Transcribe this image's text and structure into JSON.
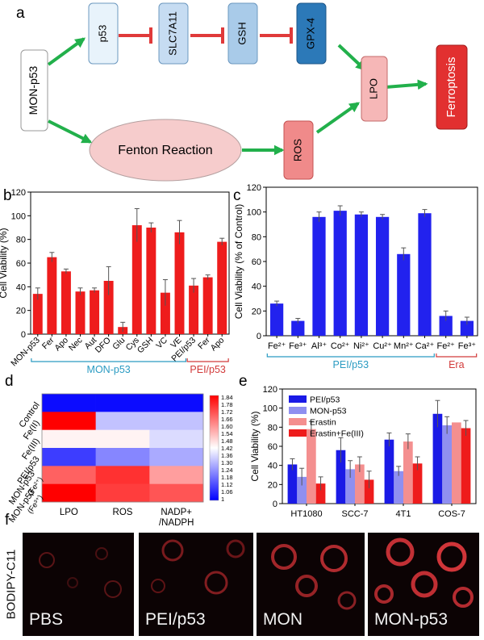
{
  "panel_letters": {
    "a": "a",
    "b": "b",
    "c": "c",
    "d": "d",
    "e": "e",
    "f": "f"
  },
  "panel_a": {
    "nodes": {
      "mon": "MON-p53",
      "p53": "p53",
      "slc": "SLC7A11",
      "gsh": "GSH",
      "gpx": "GPX-4",
      "lpo": "LPO",
      "ferro": "Ferroptosis",
      "fenton": "Fenton Reaction",
      "ros": "ROS"
    },
    "colors": {
      "activate": "#22b04b",
      "inhibit": "#e03a3a",
      "p53": "#e8f3fb",
      "slc": "#c6dcf2",
      "gsh": "#a9cbe9",
      "gpx": "#2c79b8",
      "lpo": "#f6b7b7",
      "ferro": "#e23030",
      "fenton": "#f6cccc",
      "ros": "#f08a8a"
    }
  },
  "chart_data": [
    {
      "id": "b",
      "type": "bar",
      "ylabel": "Cell Viability (%)",
      "ylim": [
        0,
        120
      ],
      "yticks": [
        0,
        20,
        40,
        60,
        80,
        100,
        120
      ],
      "color": "#ee1c1c",
      "categories": [
        "MON-p53",
        "Fer",
        "Apo",
        "Nec",
        "Aut",
        "DFO",
        "Glu",
        "Cys",
        "GSH",
        "VC",
        "VE",
        "PEI/p53",
        "Fer",
        "Apo"
      ],
      "values": [
        34,
        65,
        53,
        36,
        37,
        45,
        6,
        92,
        90,
        35,
        86,
        41,
        48,
        78
      ],
      "errors": [
        5,
        4,
        2,
        3,
        2,
        12,
        4,
        14,
        4,
        11,
        10,
        6,
        2,
        3
      ],
      "groups": [
        {
          "label": "MON-p53",
          "from": 0,
          "to": 10,
          "color": "#2a9bc2"
        },
        {
          "label": "PEI/p53",
          "from": 11,
          "to": 13,
          "color": "#d23a3a"
        }
      ]
    },
    {
      "id": "c",
      "type": "bar",
      "ylabel": "Cell Viability (% of Control)",
      "ylim": [
        0,
        120
      ],
      "yticks": [
        0,
        20,
        40,
        60,
        80,
        100,
        120
      ],
      "color": "#2222ee",
      "categories": [
        "Fe²⁺",
        "Fe³⁺",
        "Al³⁺",
        "Co²⁺",
        "Ni²⁺",
        "Cu²⁺",
        "Mn²⁺",
        "Ca²⁺",
        "Fe²⁺",
        "Fe³⁺"
      ],
      "values": [
        26,
        12,
        96,
        101,
        98,
        96,
        66,
        99,
        16,
        12
      ],
      "errors": [
        2,
        2,
        4,
        4,
        2,
        2,
        5,
        3,
        4,
        3
      ],
      "groups": [
        {
          "label": "PEI/p53",
          "from": 0,
          "to": 7,
          "color": "#2a9bc2"
        },
        {
          "label": "Era",
          "from": 8,
          "to": 9,
          "color": "#d23a3a"
        }
      ]
    },
    {
      "id": "d",
      "type": "heatmap",
      "rows": [
        "Control",
        "Fe(II)",
        "Fe(III)",
        "PEI/p53",
        "MON-p53 (Fe²⁺)",
        "MON-p53 (Fe³⁺)"
      ],
      "columns": [
        "LPO",
        "ROS",
        "NADP+ /NADPH"
      ],
      "values": [
        [
          1.02,
          1.02,
          1.02
        ],
        [
          1.84,
          1.32,
          1.32
        ],
        [
          1.44,
          1.44,
          1.36
        ],
        [
          1.1,
          1.22,
          1.28
        ],
        [
          1.68,
          1.76,
          1.58
        ],
        [
          1.84,
          1.74,
          1.7
        ]
      ],
      "colorbar": {
        "min": 1.0,
        "max": 1.84,
        "ticks": [
          "1.84",
          "1.78",
          "1.72",
          "1.66",
          "1.60",
          "1.54",
          "1.48",
          "1.42",
          "1.36",
          "1.30",
          "1.24",
          "1.18",
          "1.12",
          "1.06",
          "1"
        ],
        "low_color": "#0000ff",
        "mid_color": "#ffffff",
        "high_color": "#ff0000"
      }
    },
    {
      "id": "e",
      "type": "bar",
      "ylabel": "Cell Viability (%)",
      "ylim": [
        0,
        120
      ],
      "yticks": [
        0,
        20,
        40,
        60,
        80,
        100,
        120
      ],
      "categories": [
        "HT1080",
        "SCC-7",
        "4T1",
        "COS-7"
      ],
      "legend_position": "top-left",
      "series": [
        {
          "name": "PEI/p53",
          "color": "#1a1ae6",
          "values": [
            41,
            56,
            67,
            94
          ],
          "errors": [
            6,
            13,
            7,
            14
          ]
        },
        {
          "name": "MON-p53",
          "color": "#8f8ff0",
          "values": [
            28,
            36,
            34,
            82
          ],
          "errors": [
            9,
            9,
            5,
            9
          ]
        },
        {
          "name": "Erastin",
          "color": "#f48f8f",
          "values": [
            78,
            41,
            65,
            85
          ],
          "errors": [
            8,
            8,
            8,
            0
          ]
        },
        {
          "name": "Erastin+Fe(III)",
          "color": "#ee1c1c",
          "values": [
            21,
            25,
            42,
            79
          ],
          "errors": [
            7,
            9,
            7,
            8
          ]
        }
      ]
    }
  ],
  "panel_f": {
    "label": "BODIPY-C11",
    "images": [
      "PBS",
      "PEI/p53",
      "MON",
      "MON-p53"
    ]
  }
}
